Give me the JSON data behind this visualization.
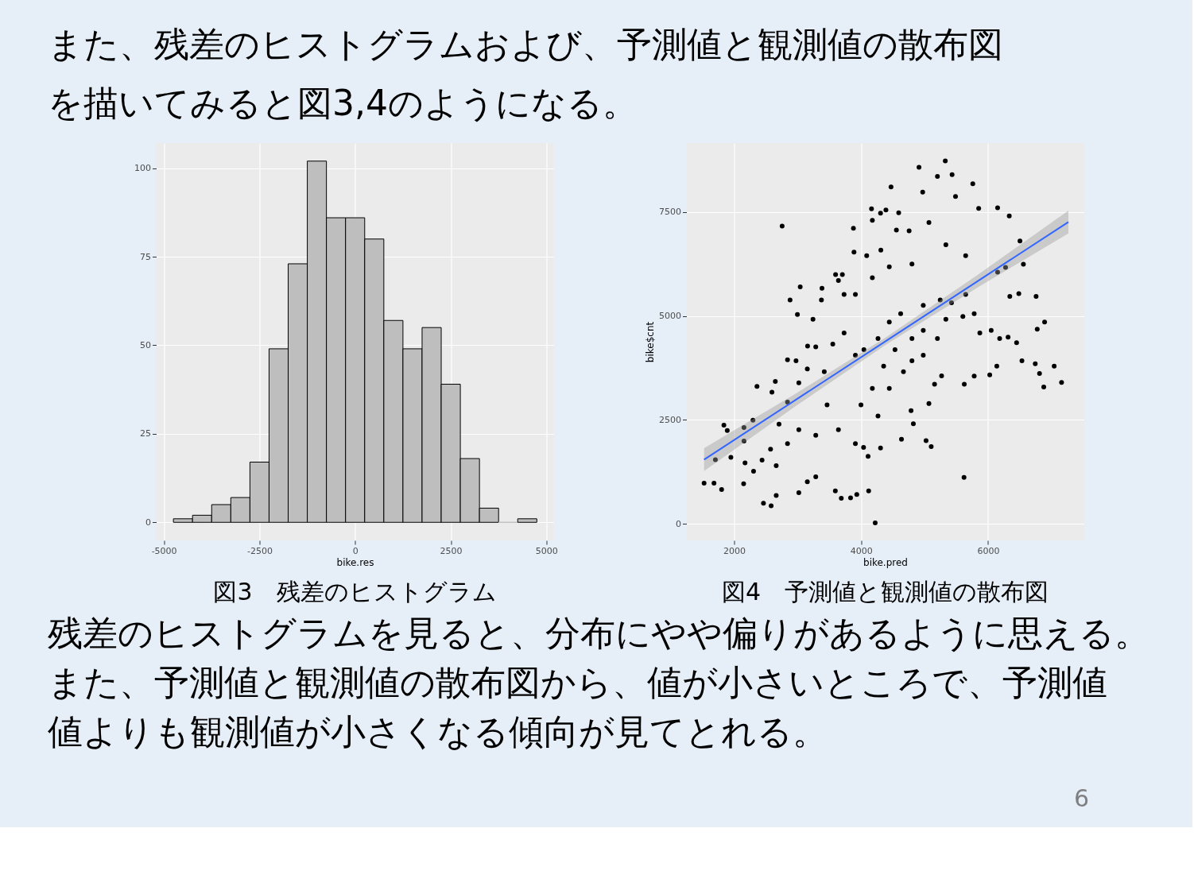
{
  "chart_data": [
    {
      "type": "histogram",
      "xlabel": "bike.res",
      "bins": [
        -4750,
        -4250,
        -3750,
        -3250,
        -2750,
        -2250,
        -1750,
        -1250,
        -750,
        -250,
        250,
        750,
        1250,
        1750,
        2250,
        2750,
        3250,
        3750,
        4250,
        4750
      ],
      "values": [
        1,
        2,
        5,
        7,
        17,
        49,
        73,
        102,
        86,
        86,
        80,
        57,
        49,
        55,
        39,
        18,
        4,
        0,
        1
      ],
      "color": "#bebebe",
      "xlim": [
        -5200,
        5190
      ],
      "ylim": [
        -5.1,
        107.1
      ],
      "xticks": [
        -5000,
        -2500,
        0,
        2500,
        5000
      ],
      "yticks": [
        0,
        25,
        50,
        75,
        100
      ],
      "grid": true,
      "annotations": [
        "図3　残差のヒストグラム"
      ]
    },
    {
      "type": "scatter",
      "xlabel": "bike.pred",
      "ylabel": "bike$cnt",
      "xlim": [
        1250,
        7510
      ],
      "ylim": [
        -400,
        9160
      ],
      "xticks": [
        2000,
        4000,
        6000
      ],
      "yticks": [
        0,
        2500,
        5000,
        7500
      ],
      "grid": true,
      "series": [
        {
          "type": "scatter",
          "color": "#000000",
          "marker": "circle",
          "x": [
            1528,
            1684,
            1804,
            1840,
            1893,
            1706,
            2156,
            2156,
            2151,
            2298,
            2361,
            2463,
            2584,
            2664,
            2597,
            2650,
            2757,
            2882,
            2842,
            2998,
            3042,
            3020,
            3154,
            3158,
            3287,
            3385,
            3599,
            3706,
            3595,
            3689,
            3835,
            3880,
            3889,
            3933,
            3911,
            4040,
            4120,
            4111,
            4223,
            4165,
            4178,
            4307,
            4307,
            4392,
            4472,
            4593,
            4637,
            4557,
            4788,
            4824,
            4913,
            4971,
            5024,
            5105,
            5069,
            5327,
            5203,
            5434,
            5488,
            5760,
            5622,
            5853,
            6151,
            6334,
            6503,
            6557,
            6276,
            6151,
            6343,
            6485,
            6757,
            6891,
            6775,
            6534,
            6744,
            6811,
            6878,
            7042,
            7158,
            6027,
            5782,
            5626,
            5269,
            5158,
            5604,
            5782,
            5336,
            5203,
            4980,
            4802,
            5871,
            6050,
            6183,
            6316,
            6450,
            6138,
            5648,
            5425,
            5648,
            5336,
            5069,
            4757,
            4802,
            4445,
            4312,
            4089,
            4178,
            3911,
            3644,
            3376,
            3243,
            3154,
            3020,
            2842,
            2708,
            2575,
            2441,
            2307,
            2173,
            1950,
            2664,
            2842,
            3020,
            3287,
            3465,
            3644,
            3421,
            3555,
            3733,
            3911,
            4045,
            4267,
            4445,
            4624,
            4535,
            4356,
            4178,
            3999,
            4267,
            4445,
            4668,
            4802,
            4980,
            4980,
            5247,
            3287,
            3733,
            2976
          ],
          "values": [
            977,
            977,
            824,
            2374,
            2241,
            1543,
            2314,
            1988,
            964,
            2493,
            3305,
            492,
            432,
            678,
            3165,
            3424,
            7161,
            5386,
            3943,
            5033,
            5698,
            745,
            1011,
            4275,
            1130,
            5665,
            5997,
            5997,
            791,
            612,
            625,
            7108,
            6536,
            705,
            1928,
            1835,
            791,
            1622,
            20,
            7580,
            7301,
            1822,
            7473,
            7547,
            8105,
            7480,
            2035,
            7068,
            2719,
            2407,
            8577,
            7979,
            2001,
            1855,
            2892,
            8730,
            8358,
            8398,
            7872,
            8178,
            1117,
            7586,
            7600,
            7407,
            6802,
            6243,
            6170,
            6051,
            5472,
            5539,
            5472,
            4854,
            4681,
            3923,
            3850,
            3617,
            3291,
            3790,
            3398,
            3584,
            3551,
            3358,
            3557,
            3358,
            4987,
            5053,
            4920,
            4455,
            4654,
            4455,
            4588,
            4654,
            4455,
            4488,
            4355,
            3790,
            5519,
            5319,
            6449,
            6715,
            7247,
            7048,
            6250,
            6184,
            6582,
            6449,
            5918,
            5519,
            5851,
            5386,
            4920,
            3723,
            3391,
            2926,
            2394,
            1795,
            1529,
            1263,
            1463,
            1596,
            1396,
            1928,
            2261,
            2128,
            2859,
            2261,
            3657,
            4322,
            4588,
            4056,
            4189,
            4455,
            4854,
            5053,
            4189,
            3790,
            3258,
            2859,
            2593,
            3258,
            3657,
            3923,
            4056,
            5253,
            5386,
            4255,
            5519,
            3923
          ]
        },
        {
          "type": "line",
          "color": "#3366ff",
          "x": [
            1528,
            2962,
            4397,
            5831,
            7266
          ],
          "values": [
            1543,
            2972,
            4402,
            5831,
            7261
          ],
          "lower": [
            1268,
            2822,
            4312,
            5681,
            6986
          ],
          "upper": [
            1818,
            3122,
            4492,
            5981,
            7536
          ]
        }
      ],
      "annotations": [
        "図4　予測値と観測値の散布図"
      ]
    },
    {
      "type": "other",
      "annotations": [
        "また、残差のヒストグラムおよび、予測値と観測値の散布図",
        "を描いてみると図3,4のようになる。",
        "残差のヒストグラムを見ると、分布にやや偏りがあるように思える。",
        "また、予測値と観測値の散布図から、値が小さいところで、予測値",
        "値よりも観測値が小さくなる傾向が見てとれる。",
        "6"
      ]
    }
  ]
}
